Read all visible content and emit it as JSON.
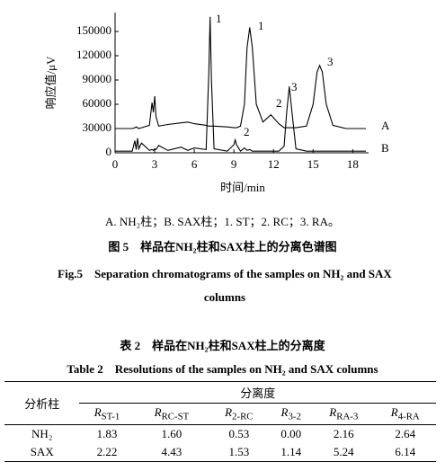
{
  "chart_data": {
    "type": "line",
    "ylabel": "响应值/μV",
    "xlabel": "时间/min",
    "x": [
      0,
      1.3,
      1.5,
      1.6,
      1.7,
      1.8,
      2.0,
      2.6,
      2.8,
      2.9,
      3.0,
      3.1,
      3.3,
      4.0,
      5.0,
      5.5,
      6.0,
      6.9,
      7.1,
      7.2,
      7.3,
      7.5,
      8.5,
      9.0,
      9.1,
      9.2,
      9.5,
      9.8,
      10.0,
      10.2,
      10.4,
      10.7,
      11.2,
      11.8,
      12.4,
      12.8,
      13.0,
      13.2,
      13.4,
      13.7,
      14.5,
      15.0,
      15.3,
      15.5,
      15.7,
      16.0,
      16.5,
      17.5,
      19.0
    ],
    "series": [
      {
        "name": "A",
        "color": "#000000",
        "values": [
          30000,
          30000,
          31000,
          32000,
          31000,
          30000,
          31000,
          34000,
          62000,
          50000,
          70000,
          45000,
          33000,
          35000,
          37000,
          38000,
          36000,
          34000,
          33000,
          33000,
          33000,
          33000,
          32000,
          31000,
          31000,
          31000,
          33000,
          60000,
          130000,
          155000,
          130000,
          60000,
          38000,
          47000,
          36000,
          31000,
          31000,
          31000,
          31000,
          31000,
          33000,
          60000,
          100000,
          108000,
          100000,
          60000,
          34000,
          30000,
          30000
        ]
      },
      {
        "name": "B",
        "color": "#000000",
        "values": [
          2000,
          2000,
          15000,
          4000,
          18000,
          5000,
          12000,
          3000,
          4000,
          3000,
          5000,
          4000,
          9000,
          3000,
          7000,
          3000,
          6000,
          4000,
          100000,
          168000,
          90000,
          5000,
          2000,
          10000,
          16000,
          10000,
          2000,
          6000,
          3000,
          4000,
          2000,
          2000,
          2000,
          2000,
          2000,
          8000,
          50000,
          82000,
          50000,
          5000,
          2000,
          2000,
          2000,
          2000,
          2000,
          2000,
          2000,
          2000,
          2000
        ]
      }
    ],
    "xlim": [
      0,
      19
    ],
    "xticks": [
      0,
      3,
      6,
      9,
      12,
      15,
      18
    ],
    "ylim": [
      0,
      170000
    ],
    "yticks": [
      0,
      30000,
      60000,
      90000,
      120000,
      150000
    ],
    "annotations": [
      "1",
      "1",
      "2",
      "2",
      "3",
      "3"
    ]
  },
  "figure": {
    "legend_note": "A. NH₂柱；B. SAX柱；1. ST；2. RC；3. RA。",
    "title_cn": "图 5　样品在NH₂柱和SAX柱上的分离色谱图",
    "title_en": "Fig.5　Separation chromatograms of the samples on NH₂ and SAX columns"
  },
  "table": {
    "title_cn": "表 2　样品在NH₂柱和SAX柱上的分离度",
    "title_en": "Table 2　Resolutions of the samples on NH₂ and SAX columns",
    "row_header": "分析柱",
    "group_header": "分离度",
    "columns": [
      {
        "symbol": "R",
        "subscript": "ST-1"
      },
      {
        "symbol": "R",
        "subscript": "RC-ST"
      },
      {
        "symbol": "R",
        "subscript": "2-RC"
      },
      {
        "symbol": "R",
        "subscript": "3-2"
      },
      {
        "symbol": "R",
        "subscript": "RA-3"
      },
      {
        "symbol": "R",
        "subscript": "4-RA"
      }
    ],
    "rows": [
      [
        "NH₂",
        "1.83",
        "1.60",
        "0.53",
        "0.00",
        "2.16",
        "2.64"
      ],
      [
        "SAX",
        "2.22",
        "4.43",
        "1.53",
        "1.14",
        "5.24",
        "6.14"
      ]
    ]
  }
}
